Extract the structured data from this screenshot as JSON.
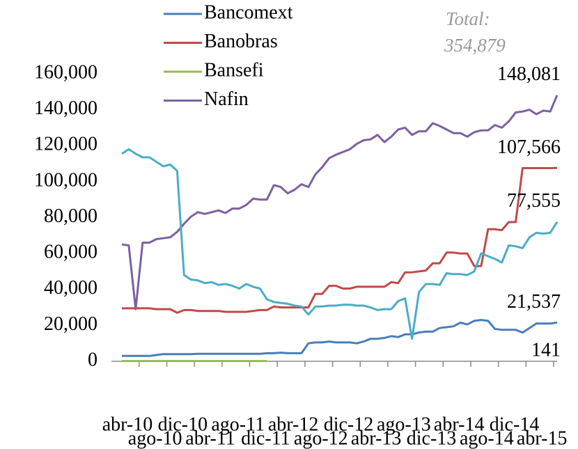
{
  "chart_data": {
    "type": "line",
    "categories": [
      "abr-10",
      null,
      null,
      null,
      "ago-10",
      null,
      null,
      null,
      "dic-10",
      null,
      null,
      null,
      "abr-11",
      null,
      null,
      null,
      "ago-11",
      null,
      null,
      null,
      "dic-11",
      null,
      null,
      null,
      "abr-12",
      null,
      null,
      null,
      "ago-12",
      null,
      null,
      null,
      "dic-12",
      null,
      null,
      null,
      "abr-13",
      null,
      null,
      null,
      "ago-13",
      null,
      null,
      null,
      "dic-13",
      null,
      null,
      null,
      "abr-14",
      null,
      null,
      null,
      "ago-14",
      null,
      null,
      null,
      "dic-14",
      null,
      null,
      null,
      "abr-15",
      null,
      null,
      null
    ],
    "series": [
      {
        "name": "Bancomext",
        "color": "#4a7ebb",
        "last_label": "21,537",
        "values": [
          3000,
          3000,
          3000,
          3000,
          3000,
          3500,
          4000,
          4000,
          4000,
          4000,
          4000,
          4200,
          4200,
          4200,
          4200,
          4200,
          4200,
          4200,
          4200,
          4200,
          4200,
          4500,
          4500,
          4800,
          4500,
          4500,
          4500,
          10000,
          10500,
          10500,
          11000,
          10500,
          10500,
          10500,
          10000,
          11000,
          12500,
          12500,
          13000,
          14000,
          13500,
          15000,
          15000,
          16000,
          16500,
          16500,
          18500,
          19000,
          19500,
          21500,
          20500,
          22500,
          23000,
          22500,
          18000,
          17500,
          17500,
          17500,
          16000,
          18500,
          21000,
          21000,
          21000,
          21537
        ]
      },
      {
        "name": "Banobras",
        "color": "#be4b48",
        "last_label": "107,566",
        "values": [
          29500,
          29500,
          29500,
          29500,
          29500,
          29000,
          29000,
          29000,
          27000,
          28500,
          28500,
          28000,
          28000,
          28000,
          28000,
          27500,
          27500,
          27500,
          27500,
          28000,
          28500,
          28500,
          30500,
          30000,
          30000,
          30000,
          30000,
          30000,
          37500,
          37500,
          42000,
          42000,
          40500,
          40500,
          41500,
          41500,
          41500,
          41500,
          41500,
          44000,
          43500,
          49500,
          49500,
          50000,
          50500,
          54500,
          54500,
          60500,
          60500,
          60000,
          60000,
          53000,
          53000,
          73500,
          73500,
          73000,
          77500,
          77500,
          107500,
          107500,
          107500,
          107500,
          107500,
          107566
        ]
      },
      {
        "name": "Bansefi",
        "color": "#98b954",
        "values": [
          150,
          150,
          150,
          150,
          150,
          150,
          150,
          150,
          150,
          150,
          150,
          150,
          150,
          150,
          150,
          150,
          150,
          150,
          150,
          150,
          150,
          150,
          null,
          null,
          null,
          null,
          null,
          null,
          null,
          null,
          null,
          null,
          null,
          null,
          null,
          null,
          null,
          null,
          null,
          null,
          null,
          null,
          null,
          null,
          null,
          null,
          null,
          null,
          null,
          null,
          null,
          null,
          null,
          null,
          null,
          null,
          null,
          null,
          null,
          null,
          null,
          null,
          null,
          null
        ]
      },
      {
        "name": "Nafin",
        "color": "#7d60a0",
        "last_label": "148,081",
        "values": [
          65000,
          64500,
          29000,
          66000,
          66000,
          68000,
          68500,
          69000,
          72000,
          76500,
          80500,
          83000,
          82000,
          83000,
          84000,
          82500,
          85000,
          85000,
          87000,
          90500,
          90000,
          90000,
          98000,
          97000,
          93500,
          95500,
          98500,
          97000,
          104000,
          108000,
          113000,
          115000,
          116500,
          118000,
          121000,
          123000,
          123500,
          126000,
          122000,
          125000,
          129000,
          130000,
          126000,
          128000,
          128000,
          132500,
          131000,
          129000,
          127000,
          127000,
          125000,
          127500,
          128500,
          128500,
          131500,
          130000,
          133500,
          138500,
          139000,
          140000,
          137500,
          139500,
          139000,
          148081
        ]
      },
      {
        "color": "#4bacc6",
        "last_label": "77,555",
        "values": [
          115500,
          118000,
          115500,
          113500,
          113500,
          111000,
          108500,
          109500,
          106000,
          48000,
          45500,
          45000,
          43500,
          44000,
          42500,
          43000,
          42000,
          40500,
          43000,
          41500,
          40500,
          34500,
          33000,
          32500,
          32000,
          31000,
          30500,
          26000,
          30500,
          30500,
          31000,
          31000,
          31500,
          31500,
          31000,
          31000,
          30000,
          28500,
          29000,
          29000,
          33500,
          35000,
          12500,
          38500,
          43000,
          43000,
          42500,
          49000,
          48500,
          48500,
          48000,
          50000,
          60000,
          58500,
          57000,
          55000,
          64500,
          64000,
          63000,
          69000,
          71500,
          71000,
          71500,
          77555
        ]
      }
    ],
    "annotations": [
      "Total:",
      "354,879",
      "141"
    ],
    "ylim": [
      0,
      160000
    ],
    "yticks": [
      {
        "value": 0,
        "label": "0"
      },
      {
        "value": 20000,
        "label": "20,000"
      },
      {
        "value": 40000,
        "label": "40,000"
      },
      {
        "value": 60000,
        "label": "60,000"
      },
      {
        "value": 80000,
        "label": "80,000"
      },
      {
        "value": 100000,
        "label": "100,000"
      },
      {
        "value": 120000,
        "label": "120,000"
      },
      {
        "value": 140000,
        "label": "140,000"
      },
      {
        "value": 160000,
        "label": "160,000"
      }
    ],
    "grid": false
  }
}
